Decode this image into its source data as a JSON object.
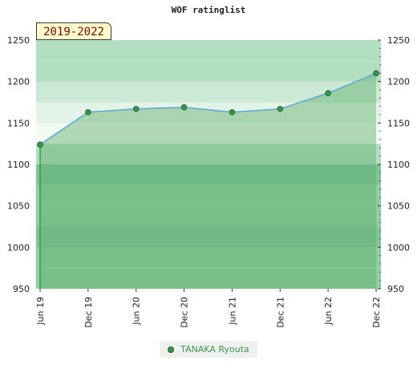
{
  "chart_data": {
    "type": "area",
    "title": "WOF ratinglist",
    "period_label": "2019-2022",
    "x": [
      "Jun 19",
      "Dec 19",
      "Jun 20",
      "Dec 20",
      "Jun 21",
      "Dec 21",
      "Jun 22",
      "Dec 22"
    ],
    "series": [
      {
        "name": "TANAKA Ryouta",
        "values": [
          1124,
          1163,
          1167,
          1169,
          1163,
          1167,
          1186,
          1210
        ]
      }
    ],
    "ylim": [
      950,
      1250
    ],
    "y_ticks": [
      950,
      1000,
      1050,
      1100,
      1150,
      1200,
      1250
    ],
    "xlabel": "",
    "ylabel": "",
    "grid": false,
    "legend_position": "bottom-center",
    "colors": {
      "line": "#5aa6d6",
      "marker_fill": "#3a9a4a",
      "marker_stroke": "#1c5e2a",
      "area_fill": "#5fb06c",
      "band_dark": "#7dc497",
      "band_mid": "#8fcda3",
      "band_light": "#b2dfc2",
      "band_lighter": "#cbe9d5",
      "band_lightest": "#e3f3e8",
      "band_white": "#f2faf4"
    }
  }
}
